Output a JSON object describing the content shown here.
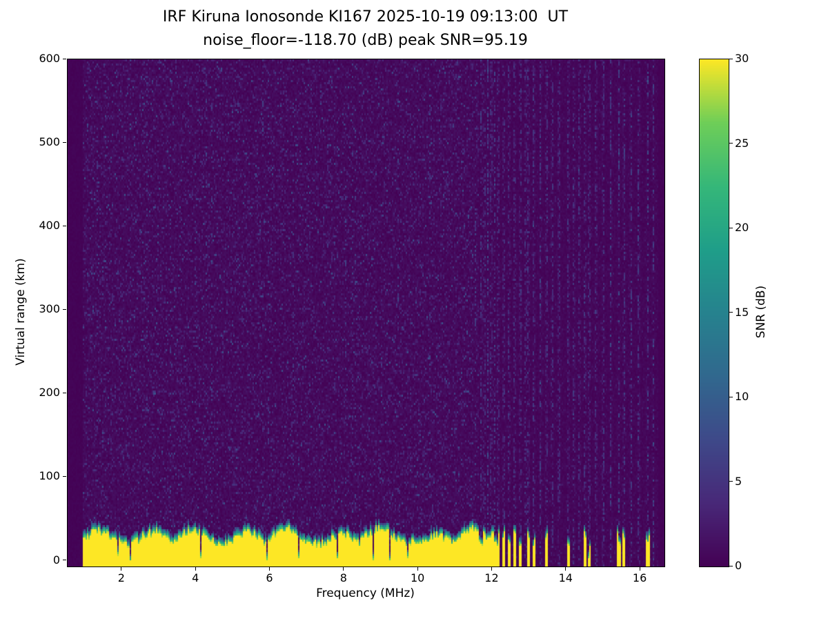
{
  "chart_data": {
    "type": "heatmap",
    "title": "IRF Kiruna Ionosonde KI167 2025-10-19 09:13:00  UT",
    "subtitle": "noise_floor=-118.70 (dB) peak SNR=95.19",
    "xlabel": "Frequency (MHz)",
    "ylabel": "Virtual range (km)",
    "x_range": [
      0.53,
      16.65
    ],
    "y_range": [
      -7,
      600
    ],
    "x_ticks": [
      2,
      4,
      6,
      8,
      10,
      12,
      14,
      16
    ],
    "y_ticks": [
      0,
      100,
      200,
      300,
      400,
      500,
      600
    ],
    "data_start_freq": 0.95,
    "data_end_freq": 16.5,
    "noise_floor_db": -118.7,
    "peak_snr_db": 95.19,
    "grid": false,
    "colorbar": {
      "label": "SNR (dB)",
      "range": [
        0,
        30
      ],
      "ticks": [
        0,
        5,
        10,
        15,
        20,
        25,
        30
      ],
      "position": "right"
    },
    "colormap": "viridis",
    "colormap_stops": [
      {
        "pos": 0.0,
        "color": "#440154"
      },
      {
        "pos": 0.125,
        "color": "#482878"
      },
      {
        "pos": 0.25,
        "color": "#3e4989"
      },
      {
        "pos": 0.375,
        "color": "#31688e"
      },
      {
        "pos": 0.5,
        "color": "#26828e"
      },
      {
        "pos": 0.625,
        "color": "#1f9e89"
      },
      {
        "pos": 0.75,
        "color": "#35b779"
      },
      {
        "pos": 0.875,
        "color": "#6ece58"
      },
      {
        "pos": 1.0,
        "color": "#fde725"
      }
    ],
    "ground_band": {
      "description": "saturated ground/transmit-pulse echo band along bottom of ionogram",
      "continuous_max_freq": 11.62,
      "min_height_km": 24,
      "max_height_km": 55,
      "segments": [
        11.7,
        11.79,
        11.88,
        11.97,
        12.06,
        12.16,
        12.31,
        12.45,
        12.6,
        12.76,
        12.97,
        13.12,
        13.47,
        14.05,
        14.5,
        14.62,
        15.42,
        15.56,
        16.2
      ]
    },
    "interference_freqs": [
      11.7,
      11.79,
      11.88,
      11.97,
      12.06,
      12.16,
      12.31,
      12.45,
      12.6,
      12.76,
      12.9,
      12.97,
      13.12,
      13.3,
      13.47,
      13.62,
      13.8,
      14.05,
      14.2,
      14.35,
      14.5,
      14.62,
      14.8,
      15.0,
      15.2,
      15.42,
      15.56,
      15.75,
      15.95,
      16.2,
      16.35
    ],
    "background_noise_db_max": 9
  }
}
